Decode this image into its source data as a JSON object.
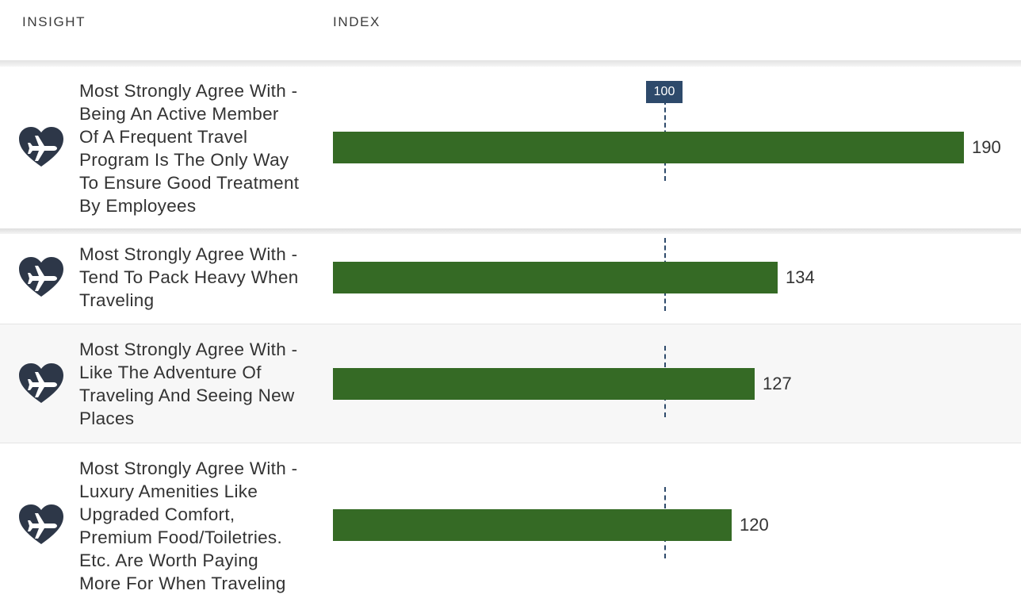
{
  "header": {
    "insight_label": "INSIGHT",
    "index_label": "INDEX"
  },
  "reference": {
    "value": 100,
    "label": "100"
  },
  "colors": {
    "bar": "#356a25",
    "reference": "#2e4a6b",
    "icon": "#2d3748"
  },
  "icon_name": "heart-airplane-icon",
  "chart_data": {
    "type": "bar",
    "orientation": "horizontal",
    "categories": [
      "Most Strongly Agree With - Being An Active Member Of A Frequent Travel Program Is The Only Way To Ensure Good Treatment By Employees",
      "Most Strongly Agree With - Tend To Pack Heavy When Traveling",
      "Most Strongly Agree With - Like The Adventure Of Traveling And Seeing New Places",
      "Most Strongly Agree With - Luxury Amenities Like Upgraded Comfort, Premium Food/Toiletries. Etc. Are Worth Paying More For When Traveling"
    ],
    "values": [
      190,
      134,
      127,
      120
    ],
    "value_labels": [
      "190",
      "134",
      "127",
      "120"
    ],
    "title": "",
    "xlabel": "INDEX",
    "ylabel": "INSIGHT",
    "xlim": [
      0,
      191
    ],
    "reference_line": 100
  },
  "rows": [
    {
      "lines": [
        "Most Strongly Agree With -",
        "Being An Active Member",
        "Of A Frequent Travel",
        "Program Is The Only Way",
        "To Ensure Good Treatment",
        "By Employees"
      ]
    },
    {
      "lines": [
        "Most Strongly Agree With -",
        "Tend To Pack Heavy When",
        "Traveling"
      ]
    },
    {
      "lines": [
        "Most Strongly Agree With -",
        "Like The Adventure Of",
        "Traveling And Seeing New",
        "Places"
      ]
    },
    {
      "lines": [
        "Most Strongly Agree With -",
        "Luxury Amenities Like",
        "Upgraded Comfort,",
        "Premium Food/Toiletries.",
        "Etc. Are Worth Paying",
        "More For When Traveling"
      ]
    }
  ]
}
